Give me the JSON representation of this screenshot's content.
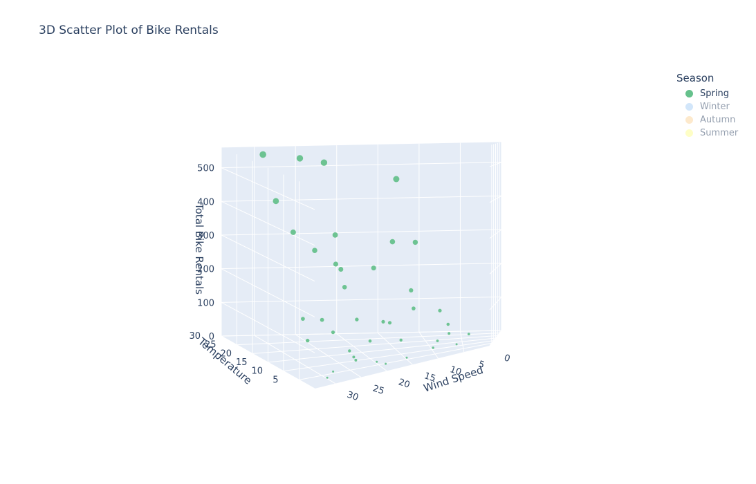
{
  "title": "3D Scatter Plot of Bike Rentals",
  "legend": {
    "title": "Season",
    "items": [
      {
        "label": "Spring",
        "color": "#66c18c",
        "visible": true
      },
      {
        "label": "Winter",
        "color": "#a6cff7",
        "visible": false
      },
      {
        "label": "Autumn",
        "color": "#fcd49b",
        "visible": false
      },
      {
        "label": "Summer",
        "color": "#fefe8e",
        "visible": false
      }
    ]
  },
  "chart_data": {
    "type": "scatter",
    "title": "3D Scatter Plot of Bike Rentals",
    "x_axis": {
      "label": "Wind Speed",
      "range": [
        0,
        34
      ],
      "ticks": [
        0,
        5,
        10,
        15,
        20,
        25,
        30
      ]
    },
    "y_axis": {
      "label": "Temperature",
      "range": [
        0,
        30
      ],
      "ticks": [
        5,
        10,
        15,
        20,
        25,
        30
      ]
    },
    "z_axis": {
      "label": "Total Bike Rentals",
      "range": [
        0,
        560
      ],
      "ticks": [
        0,
        100,
        200,
        300,
        400,
        500
      ]
    },
    "background": "#e5ecf6",
    "grid": true,
    "legend_position": "top-right",
    "series": [
      {
        "name": "Spring",
        "color": "#66c18c",
        "points": [
          {
            "x": 31,
            "y": 24,
            "z": 560
          },
          {
            "x": 25,
            "y": 28,
            "z": 530
          },
          {
            "x": 22,
            "y": 28,
            "z": 515
          },
          {
            "x": 13,
            "y": 28,
            "z": 460
          },
          {
            "x": 30,
            "y": 22,
            "z": 430
          },
          {
            "x": 28,
            "y": 21,
            "z": 340
          },
          {
            "x": 22,
            "y": 22,
            "z": 320
          },
          {
            "x": 26,
            "y": 18,
            "z": 295
          },
          {
            "x": 14,
            "y": 24,
            "z": 285
          },
          {
            "x": 11,
            "y": 24,
            "z": 280
          },
          {
            "x": 23,
            "y": 18,
            "z": 250
          },
          {
            "x": 22,
            "y": 19,
            "z": 230
          },
          {
            "x": 17,
            "y": 21,
            "z": 220
          },
          {
            "x": 22,
            "y": 17,
            "z": 185
          },
          {
            "x": 12,
            "y": 20,
            "z": 150
          },
          {
            "x": 30,
            "y": 12,
            "z": 130
          },
          {
            "x": 27,
            "y": 12,
            "z": 120
          },
          {
            "x": 12,
            "y": 17,
            "z": 105
          },
          {
            "x": 32,
            "y": 6,
            "z": 100
          },
          {
            "x": 21,
            "y": 14,
            "z": 100
          },
          {
            "x": 26,
            "y": 10,
            "z": 90
          },
          {
            "x": 17,
            "y": 14,
            "z": 85
          },
          {
            "x": 8,
            "y": 20,
            "z": 85
          },
          {
            "x": 16,
            "y": 14,
            "z": 80
          },
          {
            "x": 7,
            "y": 17,
            "z": 50
          },
          {
            "x": 20,
            "y": 10,
            "z": 50
          },
          {
            "x": 24,
            "y": 8,
            "z": 40
          },
          {
            "x": 15,
            "y": 10,
            "z": 40
          },
          {
            "x": 24,
            "y": 6,
            "z": 30
          },
          {
            "x": 7,
            "y": 14,
            "z": 30
          },
          {
            "x": 24,
            "y": 5,
            "z": 25
          },
          {
            "x": 9,
            "y": 11,
            "z": 20
          },
          {
            "x": 4,
            "y": 15,
            "z": 20
          },
          {
            "x": 10,
            "y": 8,
            "z": 10
          },
          {
            "x": 15,
            "y": 5,
            "z": 5
          },
          {
            "x": 6,
            "y": 10,
            "z": 5
          },
          {
            "x": 28,
            "y": 5,
            "z": 5
          },
          {
            "x": 20,
            "y": 6,
            "z": 5
          },
          {
            "x": 30,
            "y": 3,
            "z": 3
          },
          {
            "x": 19,
            "y": 4,
            "z": 3
          }
        ]
      }
    ]
  }
}
